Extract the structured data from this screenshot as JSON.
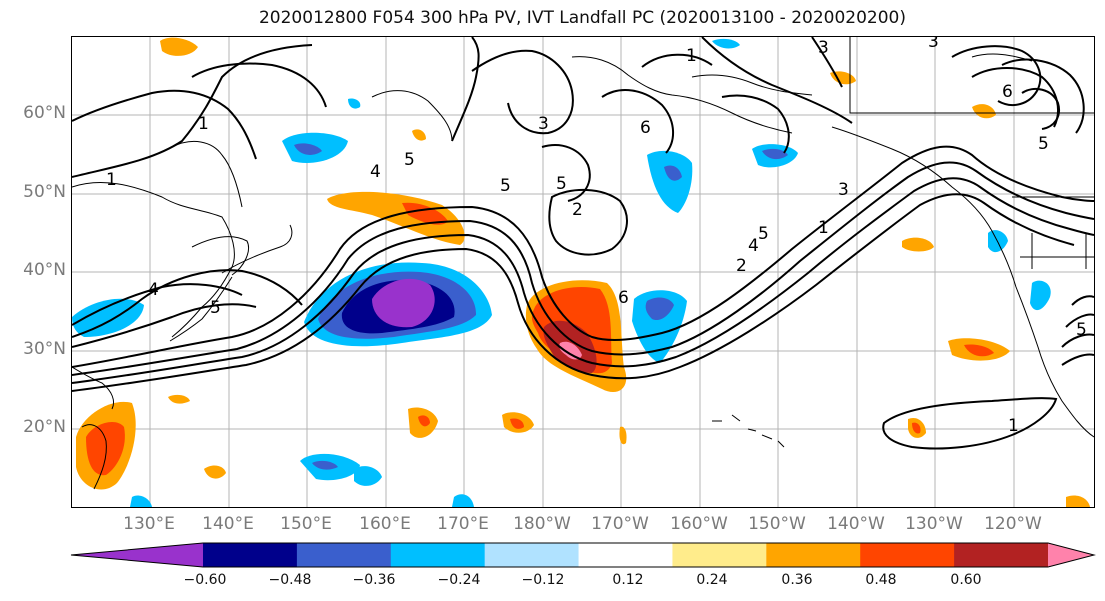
{
  "title": "2020012800 F054 300 hPa PV, IVT Landfall PC (2020013100 - 2020020200)",
  "lat_labels": [
    "60°N",
    "50°N",
    "40°N",
    "30°N",
    "20°N"
  ],
  "lon_labels": [
    "130°E",
    "140°E",
    "150°E",
    "160°E",
    "170°E",
    "180°W",
    "170°W",
    "160°W",
    "150°W",
    "140°W",
    "130°W",
    "120°W"
  ],
  "colorbar": {
    "ticks": [
      "−0.60",
      "−0.48",
      "−0.36",
      "−0.24",
      "−0.12",
      "0.12",
      "0.24",
      "0.36",
      "0.48",
      "0.60"
    ],
    "colors": [
      "#9932cc",
      "#00008b",
      "#3a5fcd",
      "#00bfff",
      "#b0e2ff",
      "#ffffff",
      "#ffec8b",
      "#ffa500",
      "#ff4500",
      "#b22222",
      "#ff82ab"
    ]
  },
  "contour_labels": [
    "1",
    "1",
    "5",
    "4",
    "5",
    "5",
    "3",
    "5",
    "2",
    "3",
    "6",
    "6",
    "5",
    "4",
    "2",
    "1",
    "3",
    "4",
    "5",
    "6",
    "1",
    "3",
    "5",
    "1"
  ]
}
